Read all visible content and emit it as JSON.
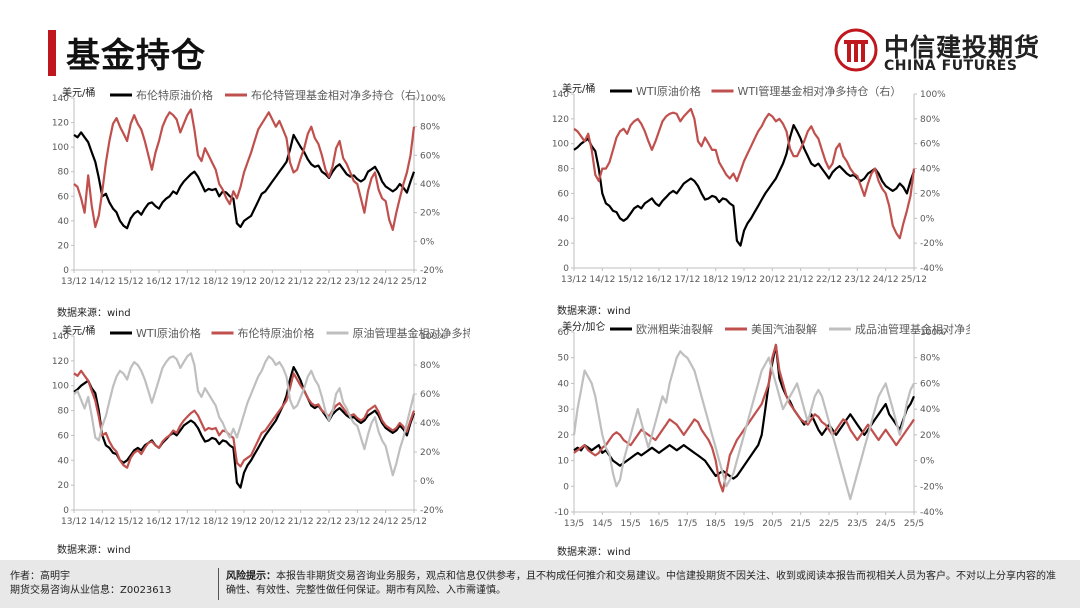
{
  "header": {
    "title": "基金持仓"
  },
  "logo": {
    "cn": "中信建投期货",
    "en": "CHINA FUTURES"
  },
  "footer": {
    "author": "作者：高明宇",
    "license": "期货交易咨询从业信息：Z0023613",
    "risk_label": "风险提示：",
    "risk_text": "本报告非期货交易咨询业务服务，观点和信息仅供参考，且不构成任何推介和交易建议。中信建投期货不因关注、收到或阅读本报告而视相关人员为客户。不对以上分享内容的准确性、有效性、完整性做任何保证。期市有风险、入市需谨慎。"
  },
  "chart_data": [
    {
      "type": "line",
      "ylabel": "美元/桶",
      "source": "数据来源：wind",
      "x_ticks": [
        "13/12",
        "14/12",
        "15/12",
        "16/12",
        "17/12",
        "18/12",
        "19/12",
        "20/12",
        "21/12",
        "22/12",
        "23/12",
        "24/12",
        "25/12"
      ],
      "left_axis": {
        "min": 0,
        "max": 140,
        "step": 20
      },
      "right_axis": {
        "min": -20,
        "max": 100,
        "step": 20,
        "suffix": "%"
      },
      "series": [
        {
          "name": "布伦特原油价格",
          "color": "#000000",
          "axis": "left",
          "values": [
            110,
            108,
            112,
            108,
            104,
            96,
            88,
            75,
            60,
            62,
            55,
            50,
            47,
            40,
            36,
            34,
            42,
            46,
            48,
            45,
            50,
            54,
            55,
            52,
            50,
            55,
            58,
            60,
            64,
            62,
            68,
            72,
            75,
            78,
            80,
            76,
            70,
            64,
            66,
            65,
            66,
            60,
            64,
            63,
            60,
            58,
            38,
            35,
            40,
            42,
            44,
            50,
            56,
            62,
            64,
            68,
            72,
            76,
            80,
            84,
            88,
            98,
            110,
            105,
            100,
            96,
            90,
            86,
            84,
            85,
            80,
            78,
            75,
            80,
            84,
            86,
            82,
            78,
            76,
            77,
            74,
            72,
            74,
            80,
            82,
            84,
            79,
            72,
            68,
            66,
            64,
            66,
            70,
            67,
            63,
            72,
            80
          ]
        },
        {
          "name": "布伦特管理基金相对净多持仓（右）",
          "color": "#c0504d",
          "axis": "right",
          "values": [
            40,
            38,
            30,
            20,
            46,
            25,
            10,
            18,
            35,
            55,
            70,
            82,
            86,
            80,
            75,
            70,
            82,
            88,
            82,
            78,
            70,
            60,
            50,
            62,
            70,
            80,
            86,
            90,
            88,
            85,
            76,
            82,
            88,
            92,
            78,
            60,
            56,
            65,
            60,
            55,
            50,
            40,
            36,
            30,
            26,
            35,
            30,
            38,
            48,
            55,
            62,
            70,
            78,
            82,
            86,
            90,
            85,
            80,
            84,
            78,
            72,
            55,
            48,
            50,
            58,
            65,
            75,
            80,
            72,
            68,
            60,
            50,
            45,
            52,
            65,
            70,
            58,
            54,
            48,
            42,
            40,
            30,
            20,
            35,
            44,
            48,
            36,
            30,
            28,
            15,
            8,
            20,
            30,
            40,
            48,
            60,
            80
          ]
        }
      ]
    },
    {
      "type": "line",
      "ylabel": "美元/桶",
      "source": "数据来源：wind",
      "x_ticks": [
        "13/12",
        "14/12",
        "15/12",
        "16/12",
        "17/12",
        "18/12",
        "19/12",
        "20/12",
        "21/12",
        "22/12",
        "23/12",
        "24/12",
        "25/12"
      ],
      "left_axis": {
        "min": 0,
        "max": 140,
        "step": 20
      },
      "right_axis": {
        "min": -40,
        "max": 100,
        "step": 20,
        "suffix": "%"
      },
      "series": [
        {
          "name": "WTI原油价格",
          "color": "#000000",
          "axis": "left",
          "values": [
            95,
            97,
            100,
            102,
            104,
            98,
            94,
            80,
            60,
            52,
            50,
            46,
            45,
            40,
            38,
            40,
            44,
            48,
            50,
            48,
            52,
            54,
            56,
            52,
            50,
            54,
            57,
            60,
            62,
            60,
            64,
            68,
            70,
            72,
            70,
            66,
            60,
            55,
            56,
            58,
            57,
            53,
            56,
            55,
            52,
            50,
            22,
            18,
            30,
            36,
            40,
            45,
            50,
            55,
            60,
            64,
            68,
            72,
            78,
            84,
            92,
            105,
            115,
            110,
            104,
            96,
            90,
            84,
            82,
            84,
            80,
            76,
            72,
            77,
            80,
            82,
            79,
            76,
            74,
            75,
            72,
            70,
            72,
            76,
            78,
            80,
            76,
            70,
            66,
            64,
            62,
            64,
            68,
            65,
            60,
            70,
            78
          ]
        },
        {
          "name": "WTI管理基金相对净多持仓（右）",
          "color": "#c0504d",
          "axis": "right",
          "values": [
            72,
            70,
            66,
            62,
            68,
            55,
            35,
            30,
            40,
            40,
            45,
            55,
            65,
            70,
            72,
            68,
            75,
            78,
            80,
            76,
            70,
            62,
            55,
            62,
            70,
            78,
            82,
            84,
            85,
            84,
            78,
            82,
            85,
            88,
            80,
            62,
            58,
            65,
            60,
            55,
            55,
            45,
            40,
            35,
            32,
            36,
            30,
            38,
            46,
            52,
            58,
            64,
            70,
            74,
            80,
            84,
            82,
            78,
            80,
            76,
            70,
            56,
            50,
            50,
            56,
            62,
            70,
            74,
            68,
            64,
            55,
            46,
            40,
            44,
            56,
            60,
            50,
            46,
            40,
            36,
            34,
            26,
            18,
            28,
            36,
            40,
            30,
            24,
            20,
            10,
            -6,
            -12,
            -16,
            -4,
            6,
            18,
            40
          ]
        }
      ]
    },
    {
      "type": "line",
      "ylabel": "美元/桶",
      "source": "数据来源：wind",
      "x_ticks": [
        "13/12",
        "14/12",
        "15/12",
        "16/12",
        "17/12",
        "18/12",
        "19/12",
        "20/12",
        "21/12",
        "22/12",
        "23/12",
        "24/12",
        "25/12"
      ],
      "left_axis": {
        "min": 0,
        "max": 140,
        "step": 20
      },
      "right_axis": {
        "min": -20,
        "max": 100,
        "step": 20,
        "suffix": "%"
      },
      "series": [
        {
          "name": "WTI原油价格",
          "color": "#000000",
          "axis": "left",
          "values": [
            95,
            97,
            100,
            102,
            104,
            98,
            94,
            80,
            60,
            52,
            50,
            46,
            45,
            40,
            38,
            40,
            44,
            48,
            50,
            48,
            52,
            54,
            56,
            52,
            50,
            54,
            57,
            60,
            62,
            60,
            64,
            68,
            70,
            72,
            70,
            66,
            60,
            55,
            56,
            58,
            57,
            53,
            56,
            55,
            52,
            50,
            22,
            18,
            30,
            36,
            40,
            45,
            50,
            55,
            60,
            64,
            68,
            72,
            78,
            84,
            92,
            105,
            115,
            110,
            104,
            96,
            90,
            84,
            82,
            84,
            80,
            76,
            72,
            77,
            80,
            82,
            79,
            76,
            74,
            75,
            72,
            70,
            72,
            76,
            78,
            80,
            76,
            70,
            66,
            64,
            62,
            64,
            68,
            65,
            60,
            70,
            78
          ]
        },
        {
          "name": "布伦特原油价格",
          "color": "#c0504d",
          "axis": "left",
          "values": [
            110,
            108,
            112,
            108,
            104,
            96,
            88,
            75,
            60,
            62,
            55,
            50,
            47,
            40,
            36,
            34,
            42,
            46,
            48,
            45,
            50,
            54,
            55,
            52,
            50,
            55,
            58,
            60,
            64,
            62,
            68,
            72,
            75,
            78,
            80,
            76,
            70,
            64,
            66,
            65,
            66,
            60,
            64,
            63,
            60,
            58,
            38,
            35,
            40,
            42,
            44,
            50,
            56,
            62,
            64,
            68,
            72,
            76,
            80,
            84,
            88,
            98,
            110,
            105,
            100,
            96,
            90,
            86,
            84,
            85,
            80,
            78,
            75,
            80,
            84,
            86,
            82,
            78,
            76,
            77,
            74,
            72,
            74,
            80,
            82,
            84,
            79,
            72,
            68,
            66,
            64,
            66,
            70,
            67,
            63,
            72,
            80
          ]
        },
        {
          "name": "原油管理基金相对净多持仓（右）",
          "color": "#bfbfbf",
          "axis": "right",
          "values": [
            60,
            62,
            56,
            50,
            58,
            45,
            30,
            28,
            38,
            45,
            55,
            65,
            72,
            76,
            74,
            70,
            78,
            82,
            80,
            76,
            70,
            62,
            54,
            62,
            70,
            78,
            82,
            85,
            86,
            84,
            78,
            82,
            86,
            88,
            80,
            62,
            58,
            64,
            60,
            56,
            52,
            44,
            40,
            34,
            30,
            36,
            30,
            38,
            46,
            54,
            60,
            66,
            72,
            76,
            82,
            86,
            84,
            80,
            82,
            78,
            72,
            56,
            50,
            52,
            58,
            64,
            72,
            76,
            70,
            66,
            58,
            48,
            42,
            48,
            60,
            64,
            54,
            50,
            44,
            40,
            38,
            30,
            22,
            32,
            40,
            44,
            34,
            28,
            24,
            14,
            4,
            12,
            22,
            30,
            40,
            50,
            60
          ]
        }
      ]
    },
    {
      "type": "line",
      "ylabel": "美分/加仑",
      "source": "数据来源：wind",
      "x_ticks": [
        "13/5",
        "14/5",
        "15/5",
        "16/5",
        "17/5",
        "18/5",
        "19/5",
        "20/5",
        "21/5",
        "22/5",
        "23/5",
        "24/5",
        "25/5"
      ],
      "left_axis": {
        "min": -10,
        "max": 60,
        "step": 10
      },
      "right_axis": {
        "min": -40,
        "max": 100,
        "step": 20,
        "suffix": "%"
      },
      "series": [
        {
          "name": "欧洲粗柴油裂解",
          "color": "#000000",
          "axis": "left",
          "values": [
            14,
            15,
            14,
            16,
            15,
            14,
            15,
            16,
            13,
            14,
            12,
            10,
            9,
            8,
            9,
            10,
            11,
            12,
            13,
            12,
            13,
            14,
            15,
            14,
            13,
            14,
            15,
            16,
            15,
            14,
            15,
            16,
            15,
            14,
            13,
            12,
            11,
            10,
            8,
            6,
            4,
            5,
            6,
            5,
            4,
            3,
            4,
            6,
            8,
            10,
            12,
            14,
            16,
            20,
            30,
            40,
            48,
            55,
            42,
            38,
            35,
            33,
            30,
            28,
            26,
            24,
            26,
            28,
            25,
            22,
            20,
            22,
            24,
            22,
            20,
            22,
            24,
            26,
            28,
            26,
            24,
            22,
            20,
            22,
            24,
            26,
            28,
            30,
            32,
            28,
            26,
            24,
            22,
            26,
            30,
            32,
            35
          ]
        },
        {
          "name": "美国汽油裂解",
          "color": "#c0504d",
          "axis": "left",
          "values": [
            13,
            14,
            15,
            16,
            14,
            13,
            12,
            13,
            15,
            16,
            18,
            20,
            21,
            20,
            18,
            17,
            16,
            18,
            20,
            22,
            21,
            20,
            19,
            18,
            20,
            22,
            24,
            26,
            25,
            24,
            22,
            20,
            22,
            24,
            26,
            25,
            22,
            20,
            18,
            15,
            10,
            2,
            -2,
            5,
            12,
            15,
            18,
            20,
            22,
            24,
            26,
            28,
            30,
            32,
            36,
            40,
            50,
            55,
            45,
            40,
            35,
            32,
            30,
            28,
            26,
            25,
            24,
            26,
            28,
            27,
            25,
            24,
            22,
            20,
            22,
            24,
            26,
            25,
            22,
            20,
            18,
            20,
            22,
            24,
            22,
            20,
            18,
            20,
            22,
            20,
            18,
            16,
            18,
            20,
            22,
            24,
            26
          ]
        },
        {
          "name": "成品油管理基金相对净多头",
          "color": "#bfbfbf",
          "axis": "right",
          "values": [
            20,
            40,
            55,
            70,
            65,
            60,
            50,
            35,
            20,
            10,
            5,
            -10,
            -20,
            -15,
            0,
            10,
            20,
            30,
            40,
            30,
            20,
            10,
            20,
            30,
            40,
            50,
            45,
            60,
            70,
            80,
            85,
            82,
            80,
            75,
            70,
            60,
            50,
            40,
            30,
            20,
            10,
            0,
            -10,
            -20,
            -15,
            -10,
            0,
            10,
            20,
            30,
            40,
            50,
            60,
            70,
            75,
            80,
            70,
            60,
            50,
            40,
            45,
            50,
            55,
            60,
            50,
            40,
            30,
            40,
            50,
            55,
            50,
            40,
            30,
            20,
            10,
            0,
            -10,
            -20,
            -30,
            -20,
            -10,
            0,
            10,
            20,
            30,
            40,
            50,
            55,
            60,
            50,
            40,
            30,
            20,
            30,
            45,
            55,
            60
          ]
        }
      ]
    }
  ]
}
